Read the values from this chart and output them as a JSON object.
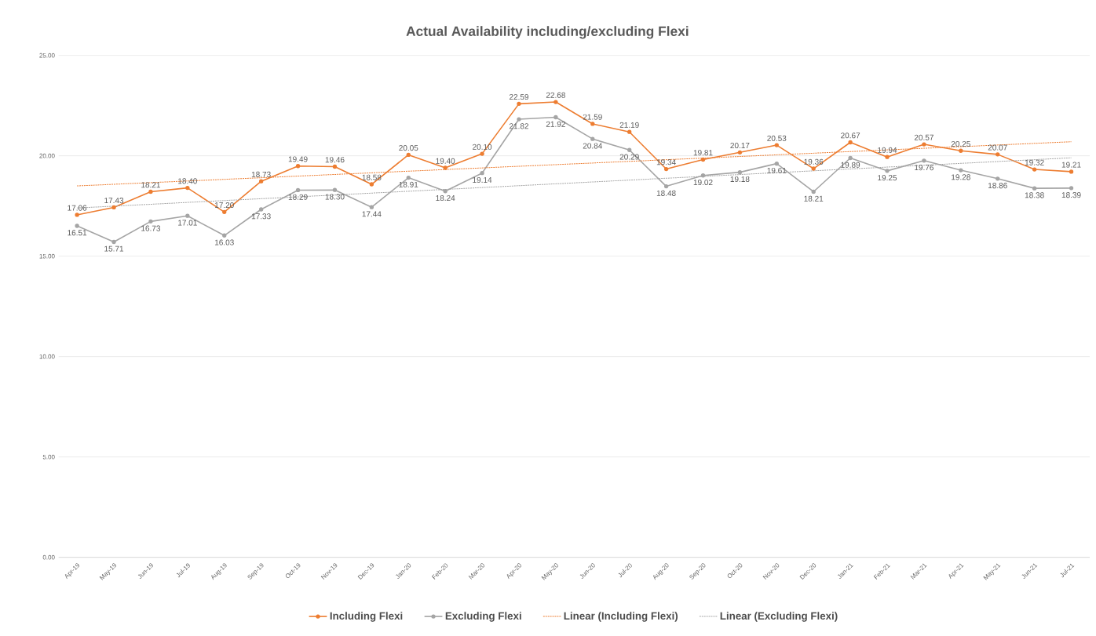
{
  "chart_data": {
    "type": "line",
    "title": "Actual Availability including/excluding Flexi",
    "categories": [
      "Apr-19",
      "May-19",
      "Jun-19",
      "Jul-19",
      "Aug-19",
      "Sep-19",
      "Oct-19",
      "Nov-19",
      "Dec-19",
      "Jan-20",
      "Feb-20",
      "Mar-20",
      "Apr-20",
      "May-20",
      "Jun-20",
      "Jul-20",
      "Aug-20",
      "Sep-20",
      "Oct-20",
      "Nov-20",
      "Dec-20",
      "Jan-21",
      "Feb-21",
      "Mar-21",
      "Apr-21",
      "May-21",
      "Jun-21",
      "Jul-21"
    ],
    "series": [
      {
        "name": "Including Flexi",
        "color": "#ed7d31",
        "values": [
          17.06,
          17.43,
          18.21,
          18.4,
          17.2,
          18.73,
          19.49,
          19.46,
          18.58,
          20.05,
          19.4,
          20.1,
          22.59,
          22.68,
          21.59,
          21.19,
          19.34,
          19.81,
          20.17,
          20.53,
          19.36,
          20.67,
          19.94,
          20.57,
          20.25,
          20.07,
          19.32,
          19.21
        ],
        "value_labels": [
          "17.06",
          "17.43",
          "18.21",
          "18.40",
          "17.20",
          "18.73",
          "19.49",
          "19.46",
          "18.58",
          "20.05",
          "19.40",
          "20.10",
          "22.59",
          "22.68",
          "21.59",
          "21.19",
          "19.34",
          "19.81",
          "20.17",
          "20.53",
          "19.36",
          "20.67",
          "19.94",
          "20.57",
          "20.25",
          "20.07",
          "19.32",
          "19.21"
        ]
      },
      {
        "name": "Excluding Flexi",
        "color": "#a5a5a5",
        "values": [
          16.51,
          15.71,
          16.73,
          17.01,
          16.03,
          17.33,
          18.29,
          18.3,
          17.44,
          18.91,
          18.24,
          19.14,
          21.82,
          21.92,
          20.84,
          20.29,
          18.48,
          19.02,
          19.18,
          19.61,
          18.21,
          19.89,
          19.25,
          19.76,
          19.28,
          18.86,
          18.38,
          18.39
        ],
        "value_labels": [
          "16.51",
          "15.71",
          "16.73",
          "17.01",
          "16.03",
          "17.33",
          "18.29",
          "18.30",
          "17.44",
          "18.91",
          "18.24",
          "19.14",
          "21.82",
          "21.92",
          "20.84",
          "20.29",
          "18.48",
          "19.02",
          "19.18",
          "19.61",
          "18.21",
          "19.89",
          "19.25",
          "19.76",
          "19.28",
          "18.86",
          "18.38",
          "18.39"
        ]
      },
      {
        "name": "Linear (Including Flexi)",
        "color": "#ed7d31",
        "line_style": "dotted",
        "marker": "none",
        "x": [
          "Apr-19",
          "Jul-21"
        ],
        "values": [
          18.5,
          20.7
        ]
      },
      {
        "name": "Linear (Excluding Flexi)",
        "color": "#a5a5a5",
        "line_style": "dotted",
        "marker": "none",
        "x": [
          "Apr-19",
          "Jul-21"
        ],
        "values": [
          17.4,
          19.9
        ]
      }
    ],
    "ylim": [
      0,
      25
    ],
    "yticks": [
      {
        "value": 0,
        "label": "0.00"
      },
      {
        "value": 5,
        "label": "5.00"
      },
      {
        "value": 10,
        "label": "10.00"
      },
      {
        "value": 15,
        "label": "15.00"
      },
      {
        "value": 20,
        "label": "20.00"
      },
      {
        "value": 25,
        "label": "25.00"
      }
    ],
    "grid": "y",
    "legend": "bottom",
    "marker": "circle",
    "line_style": "solid"
  }
}
